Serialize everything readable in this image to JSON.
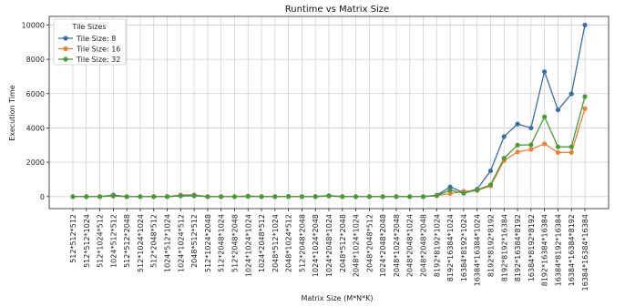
{
  "chart_data": {
    "type": "line",
    "title": "Runtime vs Matrix Size",
    "xlabel": "Matrix Size (M*N*K)",
    "ylabel": "Execution Time",
    "ylim": [
      -700,
      10500
    ],
    "yticks": [
      0,
      2000,
      4000,
      6000,
      8000,
      10000
    ],
    "grid": true,
    "legend": {
      "title": "Tile Sizes",
      "placement": "top-left"
    },
    "categories": [
      "512*512*512",
      "512*512*1024",
      "512*1024*512",
      "1024*512*512",
      "512*512*2048",
      "512*1024*1024",
      "512*2048*512",
      "1024*512*1024",
      "1024*1024*512",
      "2048*512*512",
      "512*1024*2048",
      "512*2048*1024",
      "512*2048*2048",
      "1024*1024*1024",
      "1024*2048*512",
      "2048*512*1024",
      "2048*1024*512",
      "512*2048*2048",
      "1024*1024*2048",
      "1024*2048*1024",
      "2048*512*2048",
      "2048*1024*1024",
      "2048*2048*512",
      "1024*2048*2048",
      "2048*1024*2048",
      "2048*2048*1024",
      "2048*2048*2048",
      "8192*8192*1024",
      "8192*16384*1024",
      "16384*8192*1024",
      "16384*16384*1024",
      "8192*8192*8192",
      "8192*8192*16384",
      "8192*16384*8192",
      "16384*8192*8192",
      "8192*16384*16384",
      "16384*8192*16384",
      "16384*16384*8192",
      "16384*16384*16384"
    ],
    "series": [
      {
        "name": "Tile Size: 8",
        "color": "#3a6ea5",
        "values": [
          0,
          0,
          0,
          90,
          0,
          0,
          0,
          0,
          40,
          50,
          0,
          0,
          0,
          10,
          0,
          0,
          10,
          0,
          10,
          60,
          0,
          0,
          0,
          0,
          0,
          0,
          0,
          80,
          560,
          250,
          430,
          1500,
          3500,
          4230,
          4000,
          7280,
          5050,
          5990,
          10000
        ]
      },
      {
        "name": "Tile Size: 16",
        "color": "#e8823a",
        "values": [
          0,
          0,
          0,
          30,
          0,
          0,
          0,
          0,
          100,
          100,
          0,
          0,
          0,
          40,
          0,
          0,
          10,
          0,
          0,
          30,
          0,
          0,
          0,
          0,
          0,
          0,
          0,
          50,
          180,
          310,
          350,
          620,
          2100,
          2600,
          2750,
          3080,
          2570,
          2570,
          5130
        ]
      },
      {
        "name": "Tile Size: 32",
        "color": "#4a9a3a",
        "values": [
          0,
          0,
          0,
          50,
          0,
          0,
          0,
          0,
          60,
          80,
          0,
          0,
          0,
          20,
          0,
          0,
          10,
          0,
          0,
          40,
          0,
          0,
          0,
          0,
          0,
          0,
          0,
          60,
          370,
          200,
          390,
          690,
          2240,
          3000,
          3020,
          4650,
          2900,
          2900,
          5830
        ]
      }
    ]
  }
}
